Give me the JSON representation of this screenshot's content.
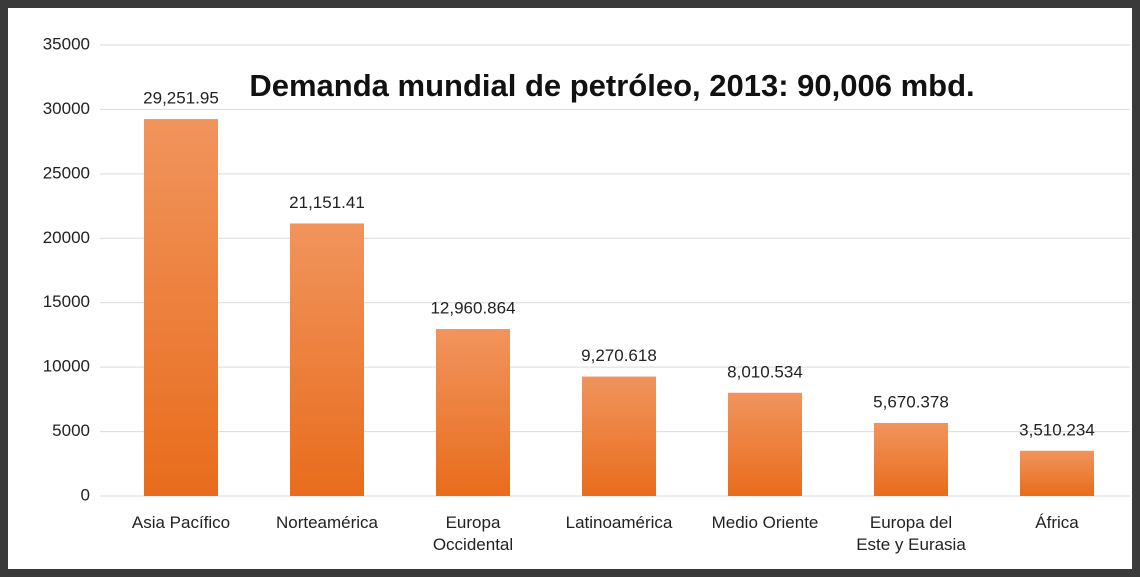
{
  "chart_data": {
    "type": "bar",
    "title": "Demanda mundial de petróleo, 2013: 90,006 mbd.",
    "categories": [
      "Asia Pacífico",
      "Norteamérica",
      "Europa Occidental",
      "Latinoamérica",
      "Medio Oriente",
      "Europa del Este y Eurasia",
      "África"
    ],
    "values": [
      29251.95,
      21151.41,
      12960.864,
      9270.618,
      8010.534,
      5670.378,
      3510.234
    ],
    "value_labels": [
      "29,251.95",
      "21,151.41",
      "12,960.864",
      "9,270.618",
      "8,010.534",
      "5,670.378",
      "3,510.234"
    ],
    "color": "#ed7d31",
    "ylim": [
      0,
      35000
    ],
    "yticks": [
      0,
      5000,
      10000,
      15000,
      20000,
      25000,
      30000,
      35000
    ],
    "grid": true
  }
}
